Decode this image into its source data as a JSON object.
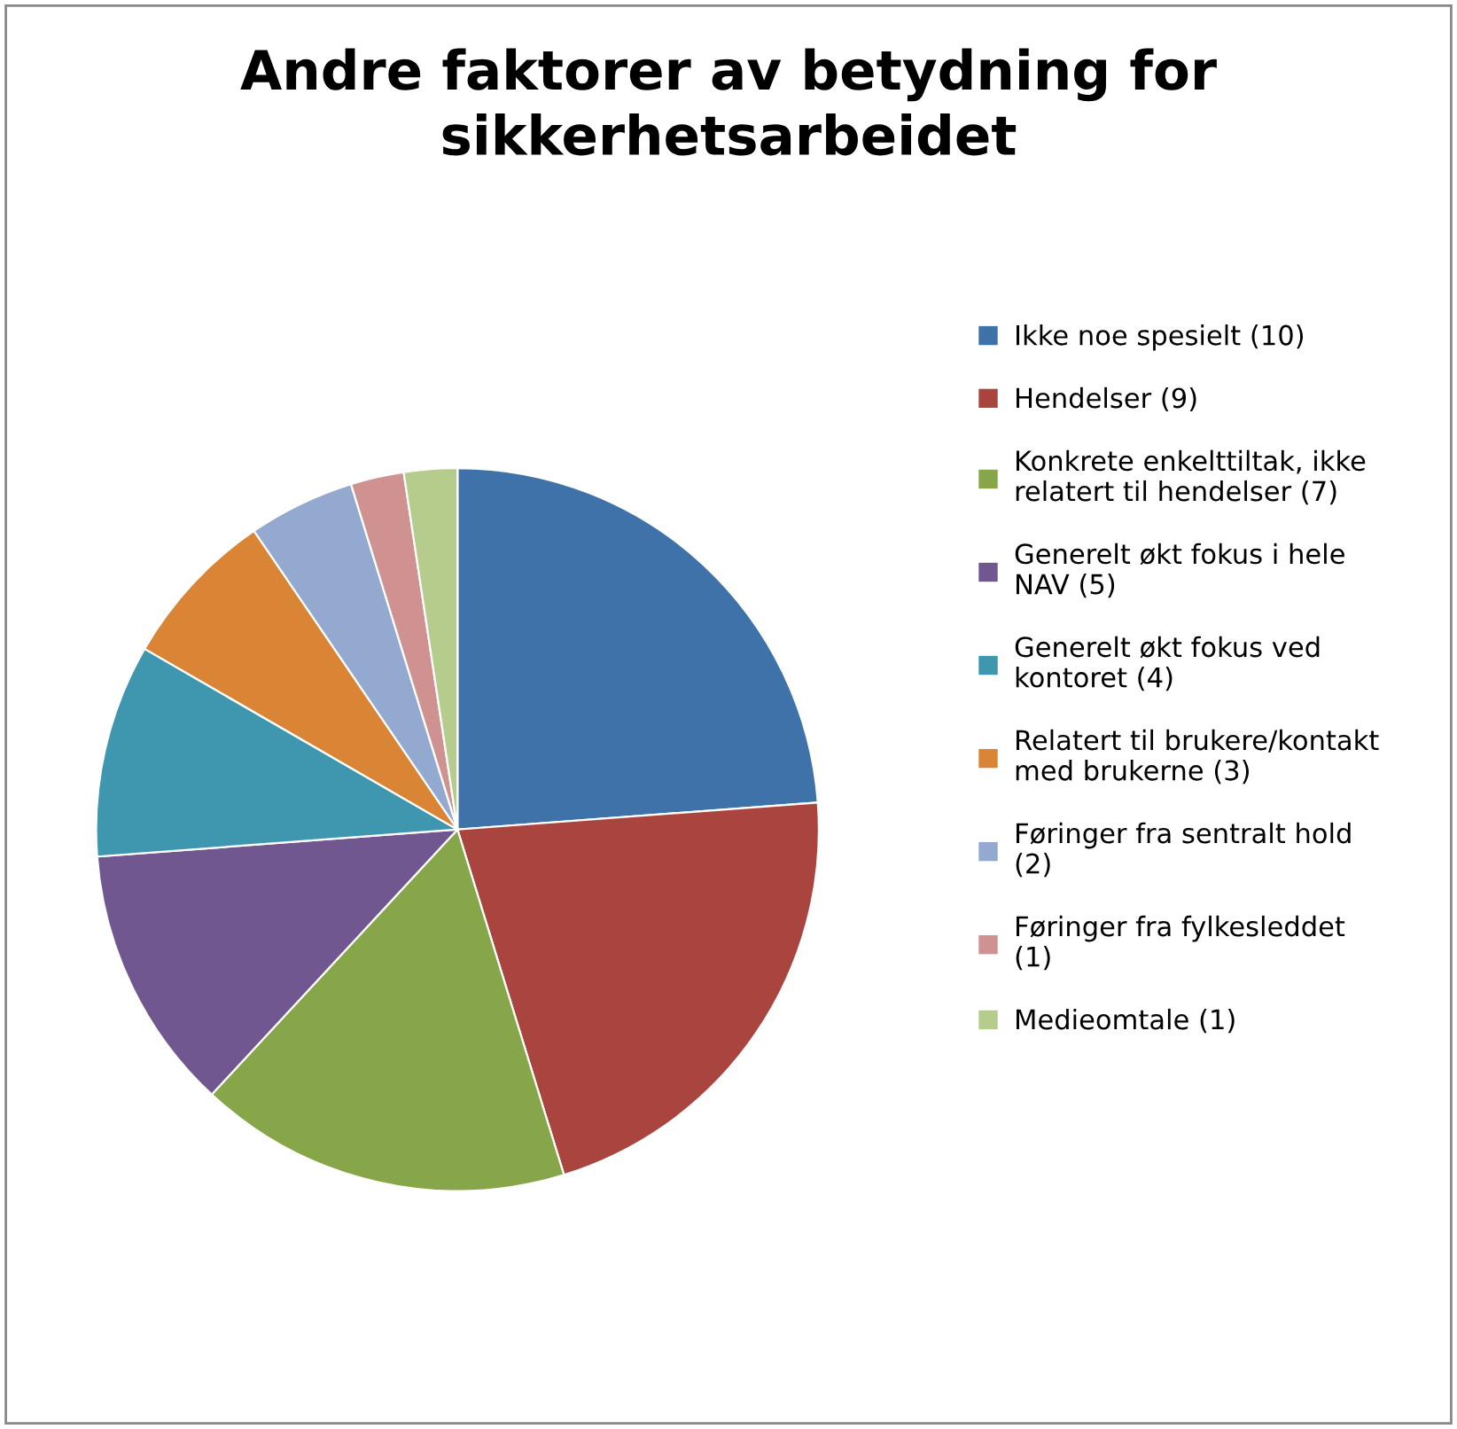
{
  "chart_data": {
    "type": "pie",
    "title": "Andre faktorer av betydning for\nsikkerhetsarbeidet",
    "categories": [
      "Ikke noe spesielt (10)",
      "Hendelser (9)",
      "Konkrete enkelttiltak, ikke\nrelatert til hendelser (7)",
      "Generelt økt fokus i hele\nNAV (5)",
      "Generelt økt fokus ved\nkontoret (4)",
      "Relatert til brukere/kontakt\nmed brukerne (3)",
      "Føringer fra sentralt hold\n(2)",
      "Føringer fra fylkesleddet\n(1)",
      "Medieomtale (1)"
    ],
    "values": [
      10,
      9,
      7,
      5,
      4,
      3,
      2,
      1,
      1
    ],
    "colors": [
      "#3f72a8",
      "#a9443f",
      "#87a64a",
      "#71578f",
      "#3e97ae",
      "#da8536",
      "#93a9cf",
      "#cf9291",
      "#b6cc8d"
    ],
    "legend": "right"
  }
}
